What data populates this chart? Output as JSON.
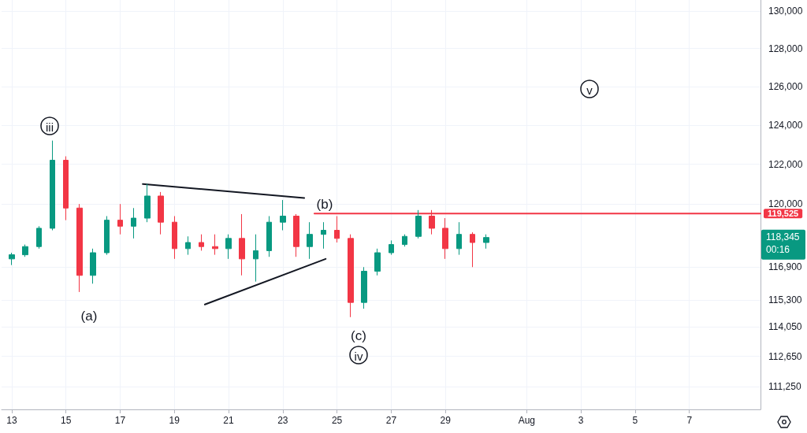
{
  "chart_data": {
    "type": "candlestick",
    "x": [
      "--07-13T00:00",
      "--07-13T12:00",
      "--07-14T00:00",
      "--07-14T12:00",
      "--07-15T00:00",
      "--07-15T12:00",
      "--07-16T00:00",
      "--07-16T12:00",
      "--07-17T00:00",
      "--07-17T12:00",
      "--07-18T00:00",
      "--07-18T12:00",
      "--07-19T00:00",
      "--07-19T12:00",
      "--07-20T00:00",
      "--07-20T12:00",
      "--07-21T00:00",
      "--07-21T12:00",
      "--07-22T00:00",
      "--07-22T12:00",
      "--07-23T00:00",
      "--07-23T12:00",
      "--07-24T00:00",
      "--07-24T12:00",
      "--07-25T00:00",
      "--07-25T12:00",
      "--07-26T00:00",
      "--07-26T12:00",
      "--07-27T00:00",
      "--07-27T12:00",
      "--07-28T00:00",
      "--07-28T12:00",
      "--07-29T00:00",
      "--07-29T12:00",
      "--07-30T00:00",
      "--07-30T12:00"
    ],
    "ohlc": [
      [
        117300,
        117600,
        117000,
        117500
      ],
      [
        117500,
        118000,
        117400,
        117900
      ],
      [
        117900,
        118900,
        117800,
        118800
      ],
      [
        118800,
        123200,
        118700,
        122200
      ],
      [
        122200,
        122400,
        119200,
        119800
      ],
      [
        119800,
        120000,
        115700,
        116500
      ],
      [
        116500,
        117800,
        116100,
        117600
      ],
      [
        117600,
        119400,
        117500,
        119200
      ],
      [
        119200,
        120000,
        118500,
        118900
      ],
      [
        118900,
        119800,
        118300,
        119300
      ],
      [
        119300,
        121000,
        119100,
        120400
      ],
      [
        120400,
        120600,
        118500,
        119100
      ],
      [
        119100,
        119400,
        117300,
        117800
      ],
      [
        117800,
        118400,
        117500,
        118100
      ],
      [
        118100,
        118500,
        117700,
        117900
      ],
      [
        117900,
        118500,
        117500,
        117800
      ],
      [
        117800,
        118500,
        117300,
        118300
      ],
      [
        118300,
        119500,
        116500,
        117300
      ],
      [
        117300,
        118500,
        116200,
        117700
      ],
      [
        117700,
        119400,
        117400,
        119100
      ],
      [
        119100,
        120200,
        118700,
        119400
      ],
      [
        119400,
        119500,
        117400,
        117900
      ],
      [
        117900,
        119100,
        117300,
        118500
      ],
      [
        118500,
        119100,
        117800,
        118700
      ],
      [
        118700,
        119400,
        118100,
        118300
      ],
      [
        118300,
        118500,
        114500,
        115200
      ],
      [
        115200,
        116900,
        114900,
        116700
      ],
      [
        116700,
        117800,
        116500,
        117600
      ],
      [
        117600,
        118200,
        117500,
        118000
      ],
      [
        118000,
        118500,
        117900,
        118400
      ],
      [
        118400,
        119700,
        118300,
        119400
      ],
      [
        119400,
        119700,
        118500,
        118800
      ],
      [
        118800,
        119300,
        117300,
        117800
      ],
      [
        117800,
        119100,
        117500,
        118500
      ],
      [
        118500,
        118600,
        116900,
        118100
      ],
      [
        118100,
        118500,
        117800,
        118345
      ]
    ],
    "series": [
      {
        "type": "line",
        "color": "#131722",
        "x": [
          "--07-17T20:00",
          "--07-23T19:00"
        ],
        "values": [
          121000,
          120300
        ]
      },
      {
        "type": "line",
        "color": "#131722",
        "x": [
          "--07-20T03:00",
          "--07-24T14:00"
        ],
        "values": [
          115100,
          117300
        ]
      },
      {
        "type": "line",
        "color": "#f23645",
        "x": [
          "--07-24T04:00",
          "--08-09T15:00"
        ],
        "values": [
          119525,
          119525
        ],
        "value_labels": [
          null,
          "119,525"
        ]
      }
    ],
    "marker": "none",
    "line_style": "solid",
    "log": "y",
    "grid": true,
    "xlim": [
      "--07-12T15:00",
      "--08-09T15:00"
    ],
    "xticks": [
      {
        "value": "--07-13",
        "label": "13"
      },
      {
        "value": "--07-15",
        "label": "15"
      },
      {
        "value": "--07-17",
        "label": "17"
      },
      {
        "value": "--07-19",
        "label": "19"
      },
      {
        "value": "--07-21",
        "label": "21"
      },
      {
        "value": "--07-23",
        "label": "23"
      },
      {
        "value": "--07-25",
        "label": "25"
      },
      {
        "value": "--07-27",
        "label": "27"
      },
      {
        "value": "--07-29",
        "label": "29"
      },
      {
        "value": "--08-01",
        "label": "Aug"
      },
      {
        "value": "--08-03",
        "label": "3"
      },
      {
        "value": "--08-05",
        "label": "5"
      },
      {
        "value": "--08-07",
        "label": "7"
      }
    ],
    "ylim": [
      110200,
      130600
    ],
    "yticks": [
      {
        "value": 111250,
        "label": "111,250"
      },
      {
        "value": 112650,
        "label": "112,650"
      },
      {
        "value": 114050,
        "label": "114,050"
      },
      {
        "value": 115300,
        "label": "115,300"
      },
      {
        "value": 116900,
        "label": "116,900"
      },
      {
        "value": 120000,
        "label": "120,000"
      },
      {
        "value": 122000,
        "label": "122,000"
      },
      {
        "value": 124000,
        "label": "124,000"
      },
      {
        "value": 126000,
        "label": "126,000"
      },
      {
        "value": 128000,
        "label": "128,000"
      },
      {
        "value": 130000,
        "label": "130,000"
      }
    ],
    "annotations": [
      "iii",
      "(a)",
      "(b)",
      "(c)",
      "iv",
      "v",
      "118,345",
      "00:16"
    ]
  }
}
